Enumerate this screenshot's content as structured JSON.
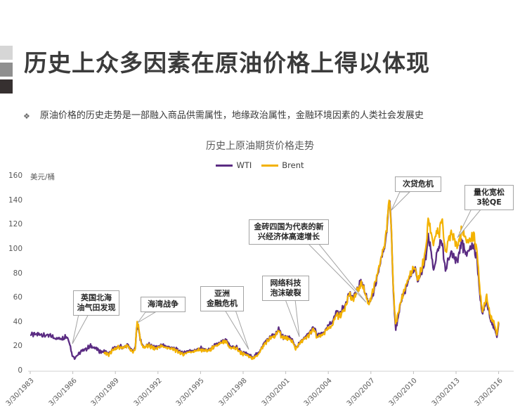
{
  "page": {
    "title": "历史上众多因素在原油价格上得以体现",
    "bullet_marker": "❖",
    "bullet_text": "原油价格的历史走势是一部融入商品供需属性，地缘政治属性，金融环境因素的人类社会发展史"
  },
  "colors": {
    "title_text": "#3b3b3b",
    "axis_text": "#595959",
    "axis_line": "#d9d9d9",
    "tick_line": "#bfbfbf",
    "callout_border": "#a3a3a3",
    "wti": "#5B2C83",
    "brent": "#F3B200",
    "deco_squares": [
      "#d6d6d6",
      "#8f8f8f",
      "#363030"
    ]
  },
  "chart_data": {
    "type": "line",
    "title": "历史上原油期货价格走势",
    "unit_label": "美元/桶",
    "ylabel": "美元/桶",
    "xlabel": "",
    "ylim": [
      0,
      160
    ],
    "yticks": [
      0,
      20,
      40,
      60,
      80,
      100,
      120,
      140,
      160
    ],
    "x_tick_labels": [
      "3/30/1983",
      "3/30/1986",
      "3/30/1989",
      "3/30/1992",
      "3/30/1995",
      "3/30/1998",
      "3/30/2001",
      "3/30/2004",
      "3/30/2007",
      "3/30/2010",
      "3/30/2013",
      "3/30/2016"
    ],
    "grid": false,
    "legend_position": "top-center",
    "series": [
      {
        "name": "WTI",
        "color": "#5B2C83",
        "x_unit": "decimal_year",
        "points": [
          [
            1983.25,
            30.5
          ],
          [
            1983.6,
            29.5
          ],
          [
            1984.0,
            30.5
          ],
          [
            1984.5,
            29
          ],
          [
            1985.0,
            27.5
          ],
          [
            1985.4,
            27
          ],
          [
            1985.8,
            29.5
          ],
          [
            1986.0,
            25
          ],
          [
            1986.2,
            14
          ],
          [
            1986.35,
            11
          ],
          [
            1986.55,
            13.5
          ],
          [
            1986.8,
            15.5
          ],
          [
            1987.1,
            18
          ],
          [
            1987.5,
            20.5
          ],
          [
            1987.8,
            19.5
          ],
          [
            1988.1,
            16.5
          ],
          [
            1988.5,
            16
          ],
          [
            1988.8,
            14
          ],
          [
            1989.1,
            18
          ],
          [
            1989.5,
            20
          ],
          [
            1989.9,
            20
          ],
          [
            1990.1,
            21.5
          ],
          [
            1990.35,
            17.5
          ],
          [
            1990.55,
            16
          ],
          [
            1990.67,
            22
          ],
          [
            1990.78,
            39
          ],
          [
            1990.9,
            34
          ],
          [
            1991.05,
            24
          ],
          [
            1991.25,
            20
          ],
          [
            1991.6,
            21.5
          ],
          [
            1992.0,
            19
          ],
          [
            1992.5,
            21.5
          ],
          [
            1993.0,
            20
          ],
          [
            1993.6,
            17.5
          ],
          [
            1994.0,
            14.8
          ],
          [
            1994.4,
            17
          ],
          [
            1994.8,
            17.5
          ],
          [
            1995.3,
            18.5
          ],
          [
            1995.8,
            17
          ],
          [
            1996.3,
            21
          ],
          [
            1996.8,
            24
          ],
          [
            1997.05,
            24.5
          ],
          [
            1997.3,
            20.5
          ],
          [
            1997.8,
            19.5
          ],
          [
            1998.2,
            15
          ],
          [
            1998.6,
            13.5
          ],
          [
            1999.0,
            11.8
          ],
          [
            1999.4,
            16.5
          ],
          [
            1999.8,
            24
          ],
          [
            2000.2,
            28
          ],
          [
            2000.5,
            30
          ],
          [
            2000.75,
            34.5
          ],
          [
            2001.0,
            29
          ],
          [
            2001.4,
            27
          ],
          [
            2001.7,
            25.5
          ],
          [
            2001.95,
            19
          ],
          [
            2002.3,
            24
          ],
          [
            2002.7,
            28
          ],
          [
            2003.05,
            33
          ],
          [
            2003.25,
            36
          ],
          [
            2003.45,
            28.5
          ],
          [
            2003.8,
            30.5
          ],
          [
            2004.1,
            34
          ],
          [
            2004.5,
            40
          ],
          [
            2004.85,
            50
          ],
          [
            2005.05,
            46
          ],
          [
            2005.4,
            54
          ],
          [
            2005.72,
            65
          ],
          [
            2005.95,
            59
          ],
          [
            2006.25,
            65
          ],
          [
            2006.6,
            74.5
          ],
          [
            2006.95,
            61
          ],
          [
            2007.1,
            56
          ],
          [
            2007.45,
            65
          ],
          [
            2007.75,
            78
          ],
          [
            2008.0,
            93
          ],
          [
            2008.25,
            104
          ],
          [
            2008.45,
            125
          ],
          [
            2008.55,
            144
          ],
          [
            2008.7,
            115
          ],
          [
            2008.85,
            62
          ],
          [
            2009.0,
            36
          ],
          [
            2009.2,
            45
          ],
          [
            2009.45,
            60
          ],
          [
            2009.75,
            70
          ],
          [
            2010.05,
            79
          ],
          [
            2010.35,
            83
          ],
          [
            2010.55,
            73
          ],
          [
            2010.85,
            83
          ],
          [
            2011.1,
            92
          ],
          [
            2011.3,
            111
          ],
          [
            2011.5,
            98
          ],
          [
            2011.68,
            83
          ],
          [
            2011.85,
            94
          ],
          [
            2012.05,
            101
          ],
          [
            2012.25,
            106
          ],
          [
            2012.5,
            81
          ],
          [
            2012.7,
            92
          ],
          [
            2012.9,
            97
          ],
          [
            2013.1,
            93
          ],
          [
            2013.35,
            91
          ],
          [
            2013.65,
            107
          ],
          [
            2013.95,
            94
          ],
          [
            2014.2,
            101
          ],
          [
            2014.5,
            104
          ],
          [
            2014.75,
            90
          ],
          [
            2014.95,
            60
          ],
          [
            2015.1,
            46
          ],
          [
            2015.4,
            60
          ],
          [
            2015.65,
            44
          ],
          [
            2015.95,
            36
          ],
          [
            2016.12,
            27
          ],
          [
            2016.25,
            39
          ]
        ]
      },
      {
        "name": "Brent",
        "color": "#F3B200",
        "x_unit": "decimal_year",
        "points": [
          [
            1988.45,
            15.5
          ],
          [
            1988.8,
            13
          ],
          [
            1989.1,
            17.5
          ],
          [
            1989.5,
            19.5
          ],
          [
            1989.9,
            19.5
          ],
          [
            1990.1,
            21
          ],
          [
            1990.35,
            16.5
          ],
          [
            1990.55,
            15.5
          ],
          [
            1990.67,
            21
          ],
          [
            1990.78,
            41
          ],
          [
            1990.9,
            35.5
          ],
          [
            1991.05,
            23
          ],
          [
            1991.25,
            19.5
          ],
          [
            1991.6,
            20.5
          ],
          [
            1992.0,
            18.5
          ],
          [
            1992.5,
            20.5
          ],
          [
            1993.0,
            19
          ],
          [
            1993.6,
            16.5
          ],
          [
            1994.0,
            13.8
          ],
          [
            1994.4,
            16
          ],
          [
            1994.8,
            16.5
          ],
          [
            1995.3,
            17.5
          ],
          [
            1995.8,
            16.5
          ],
          [
            1996.3,
            20
          ],
          [
            1996.8,
            23
          ],
          [
            1997.05,
            23.5
          ],
          [
            1997.3,
            19.5
          ],
          [
            1997.8,
            18.5
          ],
          [
            1998.2,
            14
          ],
          [
            1998.6,
            12.5
          ],
          [
            1999.0,
            10.5
          ],
          [
            1999.4,
            15.5
          ],
          [
            1999.8,
            23
          ],
          [
            2000.2,
            27
          ],
          [
            2000.5,
            29
          ],
          [
            2000.75,
            33
          ],
          [
            2001.0,
            28
          ],
          [
            2001.4,
            26
          ],
          [
            2001.7,
            24.5
          ],
          [
            2001.95,
            18.5
          ],
          [
            2002.3,
            23.5
          ],
          [
            2002.7,
            27
          ],
          [
            2003.05,
            32
          ],
          [
            2003.25,
            34
          ],
          [
            2003.45,
            27
          ],
          [
            2003.8,
            29.5
          ],
          [
            2004.1,
            32.5
          ],
          [
            2004.5,
            38
          ],
          [
            2004.85,
            47
          ],
          [
            2005.05,
            44.5
          ],
          [
            2005.4,
            52.5
          ],
          [
            2005.72,
            63.5
          ],
          [
            2005.95,
            57.5
          ],
          [
            2006.25,
            64
          ],
          [
            2006.6,
            73.5
          ],
          [
            2006.95,
            60
          ],
          [
            2007.1,
            55.5
          ],
          [
            2007.45,
            67
          ],
          [
            2007.75,
            80
          ],
          [
            2008.0,
            95
          ],
          [
            2008.25,
            106
          ],
          [
            2008.45,
            127
          ],
          [
            2008.55,
            146.5
          ],
          [
            2008.7,
            117
          ],
          [
            2008.85,
            64
          ],
          [
            2009.0,
            38
          ],
          [
            2009.2,
            47
          ],
          [
            2009.45,
            62
          ],
          [
            2009.75,
            71.5
          ],
          [
            2010.05,
            80
          ],
          [
            2010.35,
            84
          ],
          [
            2010.55,
            75
          ],
          [
            2010.85,
            85
          ],
          [
            2011.1,
            98
          ],
          [
            2011.3,
            126
          ],
          [
            2011.5,
            114
          ],
          [
            2011.68,
            104
          ],
          [
            2011.85,
            113
          ],
          [
            2012.05,
            111
          ],
          [
            2012.25,
            125
          ],
          [
            2012.5,
            96
          ],
          [
            2012.7,
            108
          ],
          [
            2012.9,
            112
          ],
          [
            2013.1,
            110
          ],
          [
            2013.35,
            102
          ],
          [
            2013.65,
            116
          ],
          [
            2013.95,
            107
          ],
          [
            2014.2,
            108
          ],
          [
            2014.5,
            112
          ],
          [
            2014.75,
            97
          ],
          [
            2014.95,
            63
          ],
          [
            2015.1,
            49
          ],
          [
            2015.4,
            63
          ],
          [
            2015.65,
            47
          ],
          [
            2015.95,
            38
          ],
          [
            2016.12,
            30
          ],
          [
            2016.25,
            41
          ]
        ]
      }
    ],
    "annotations": [
      {
        "line1": "英国北海",
        "line2": "油气田发现"
      },
      {
        "line1": "海湾战争"
      },
      {
        "line1": "亚洲",
        "line2": "金融危机"
      },
      {
        "line1": "网络科技",
        "line2": "泡沫破裂"
      },
      {
        "line1": "金砖四国为代表的新",
        "line2": "兴经济体高速增长"
      },
      {
        "line1": "次贷危机"
      },
      {
        "line1": "量化宽松",
        "line2": "3轮QE"
      }
    ]
  }
}
